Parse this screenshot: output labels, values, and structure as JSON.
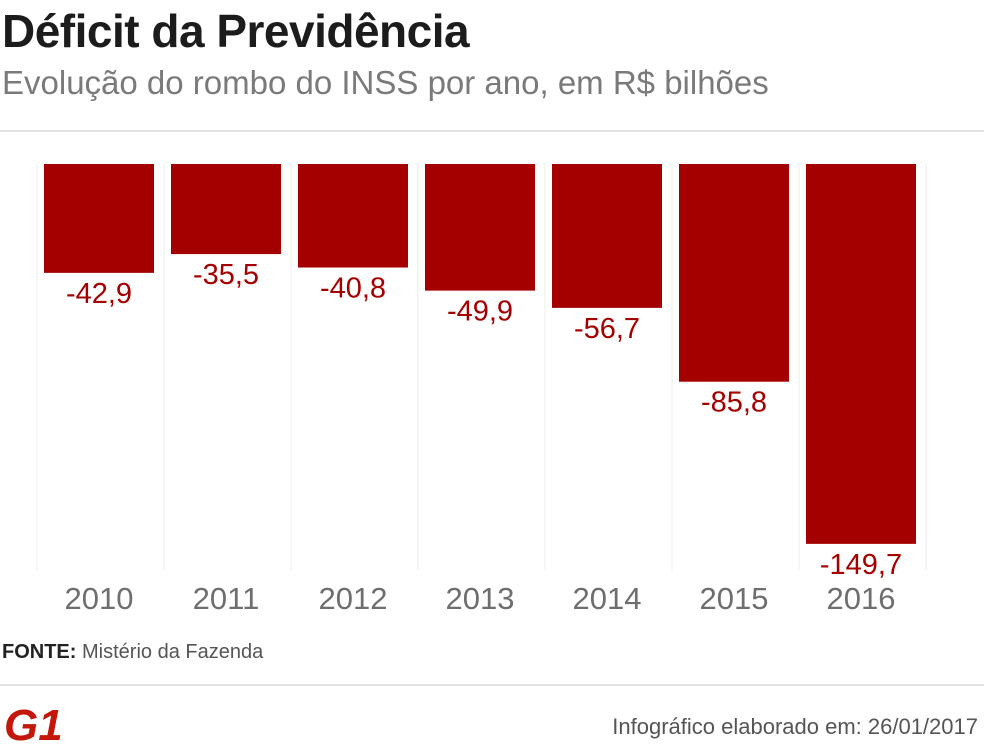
{
  "header": {
    "title": "Déficit da Previdência",
    "subtitle": "Evolução do rombo do INSS por ano, em R$ bilhões"
  },
  "source": {
    "label": "FONTE:",
    "text": "Mistério da Fazenda"
  },
  "brand": {
    "logo": "G1",
    "color": "#c4170c"
  },
  "footer": {
    "credit": "Infográfico elaborado em: 26/01/2017"
  },
  "chart_data": {
    "type": "bar",
    "orientation": "vertical",
    "categories": [
      "2010",
      "2011",
      "2012",
      "2013",
      "2014",
      "2015",
      "2016"
    ],
    "values": [
      -42.9,
      -35.5,
      -40.8,
      -49.9,
      -56.7,
      -85.8,
      -149.7
    ],
    "value_labels": [
      "-42,9",
      "-35,5",
      "-40,8",
      "-49,9",
      "-56,7",
      "-85,8",
      "-149,7"
    ],
    "ylim": [
      -160,
      0
    ],
    "bar_color": "#a50000",
    "label_color": "#a50000",
    "grid": false
  }
}
